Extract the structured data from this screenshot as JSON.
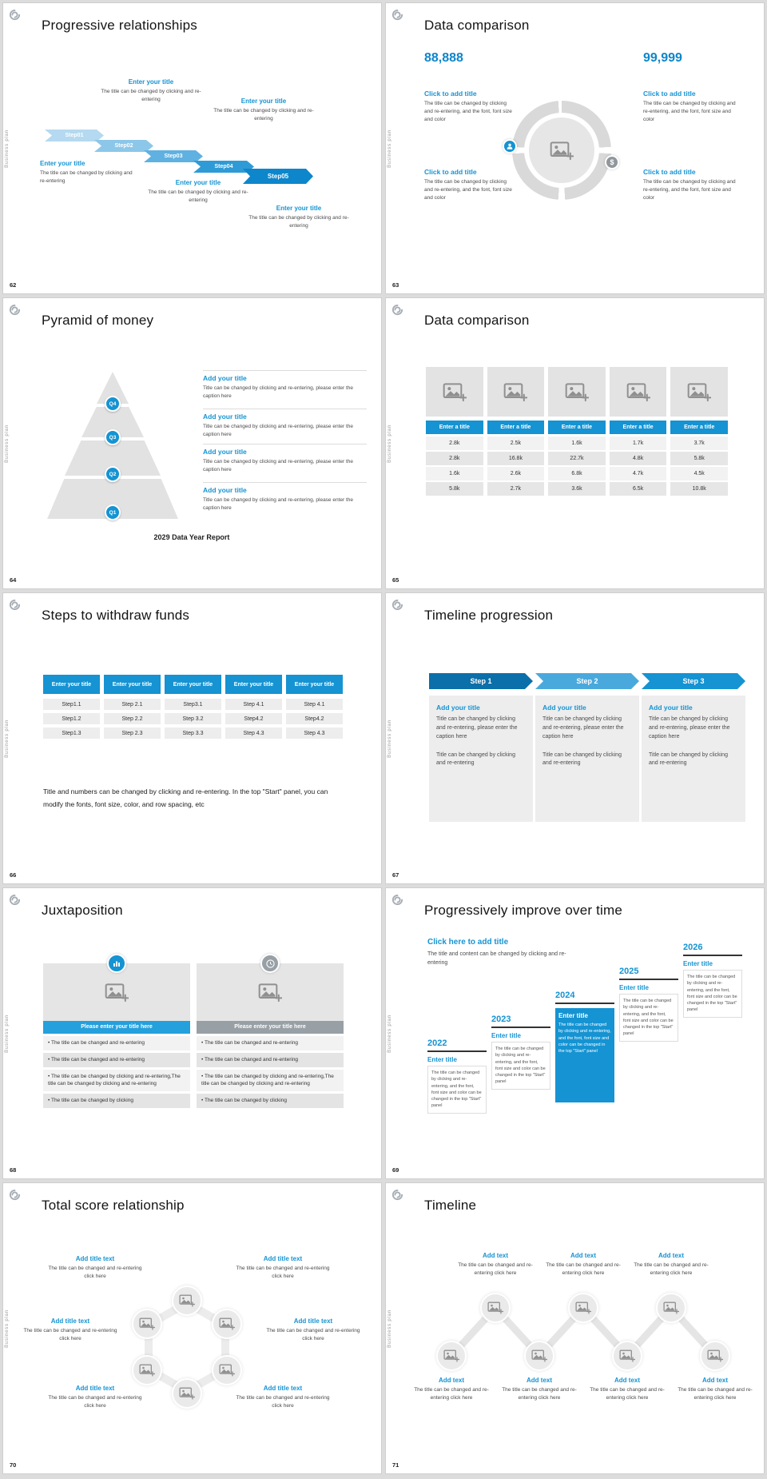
{
  "colors": {
    "accent": "#1593d2",
    "accent_dark": "#0d86cb",
    "page_bg": "#dcdcdc"
  },
  "common": {
    "sidebar_label": "Business plan"
  },
  "slides": {
    "s62": {
      "number": "62",
      "title": "Progressive relationships",
      "steps": [
        "Step01",
        "Step02",
        "Step03",
        "Step04",
        "Step05"
      ],
      "block_title": "Enter your title",
      "block_caption": "The title can be changed by clicking and re-entering"
    },
    "s63": {
      "number": "63",
      "title": "Data comparison",
      "left_value": "88,888",
      "right_value": "99,999",
      "item_title": "Click to add title",
      "item_caption": "The title can be changed by clicking and re-entering, and the font, font size and color",
      "dollar_symbol": "$"
    },
    "s64": {
      "number": "64",
      "title": "Pyramid of money",
      "levels": [
        "Q4",
        "Q3",
        "Q2",
        "Q1"
      ],
      "item_title": "Add your title",
      "item_caption": "Title can be changed by clicking and re-entering, please enter the caption here",
      "footer": "2029 Data Year Report"
    },
    "s65": {
      "number": "65",
      "title": "Data comparison",
      "table": {
        "type": "table",
        "header": [
          "Enter a title",
          "Enter a title",
          "Enter a title",
          "Enter a title",
          "Enter a title"
        ],
        "rows": [
          [
            "2.8k",
            "2.5k",
            "1.6k",
            "1.7k",
            "3.7k"
          ],
          [
            "2.8k",
            "16.8k",
            "22.7k",
            "4.8k",
            "5.8k"
          ],
          [
            "1.6k",
            "2.6k",
            "6.8k",
            "4.7k",
            "4.5k"
          ],
          [
            "5.8k",
            "2.7k",
            "3.6k",
            "6.5k",
            "10.8k"
          ]
        ]
      }
    },
    "s66": {
      "number": "66",
      "title": "Steps to withdraw funds",
      "headers": [
        "Enter your title",
        "Enter your title",
        "Enter your title",
        "Enter your title",
        "Enter your title"
      ],
      "rows": [
        [
          "Step1.1",
          "Step 2.1",
          "Step3.1",
          "Step 4.1",
          "Step 4.1"
        ],
        [
          "Step1.2",
          "Step 2.2",
          "Step 3.2",
          "Step4.2",
          "Step4.2"
        ],
        [
          "Step1.3",
          "Step 2.3",
          "Step 3.3",
          "Step 4.3",
          "Step 4.3"
        ]
      ],
      "note": "Title and numbers can be changed by clicking and re-entering. In the top \"Start\" panel, you can modify the fonts, font size, color, and row spacing, etc"
    },
    "s67": {
      "number": "67",
      "title": "Timeline progression",
      "steps": [
        "Step 1",
        "Step 2",
        "Step 3"
      ],
      "item_title": "Add your title",
      "item_caption": "Title can be changed by clicking and re-entering, please enter the caption here",
      "item_body": "Title can be changed by clicking and re-entering"
    },
    "s68": {
      "number": "68",
      "title": "Juxtaposition",
      "banner": "Please enter your title here",
      "bullets": [
        "The title can be changed and re-entering",
        "The title can be changed and re-entering",
        "The title can be changed by clicking and re-entering,The title can be changed by clicking and re-entering",
        "The title can be changed by clicking"
      ]
    },
    "s69": {
      "number": "69",
      "title": "Progressively improve over time",
      "header_title": "Click here to add title",
      "header_caption": "The title and content can be changed by clicking and re-entering",
      "years": [
        "2022",
        "2023",
        "2024",
        "2025",
        "2026"
      ],
      "item_title": "Enter title",
      "item_caption": "The title can be changed by clicking and re-entering, and the font, font size and color can be changed in the top \"Start\" panel"
    },
    "s70": {
      "number": "70",
      "title": "Total score relationship",
      "item_title": "Add title text",
      "item_caption": "The title can be changed and re-entering click here"
    },
    "s71": {
      "number": "71",
      "title": "Timeline",
      "item_title": "Add text",
      "item_caption": "The title can be changed and re-entering click here"
    }
  }
}
